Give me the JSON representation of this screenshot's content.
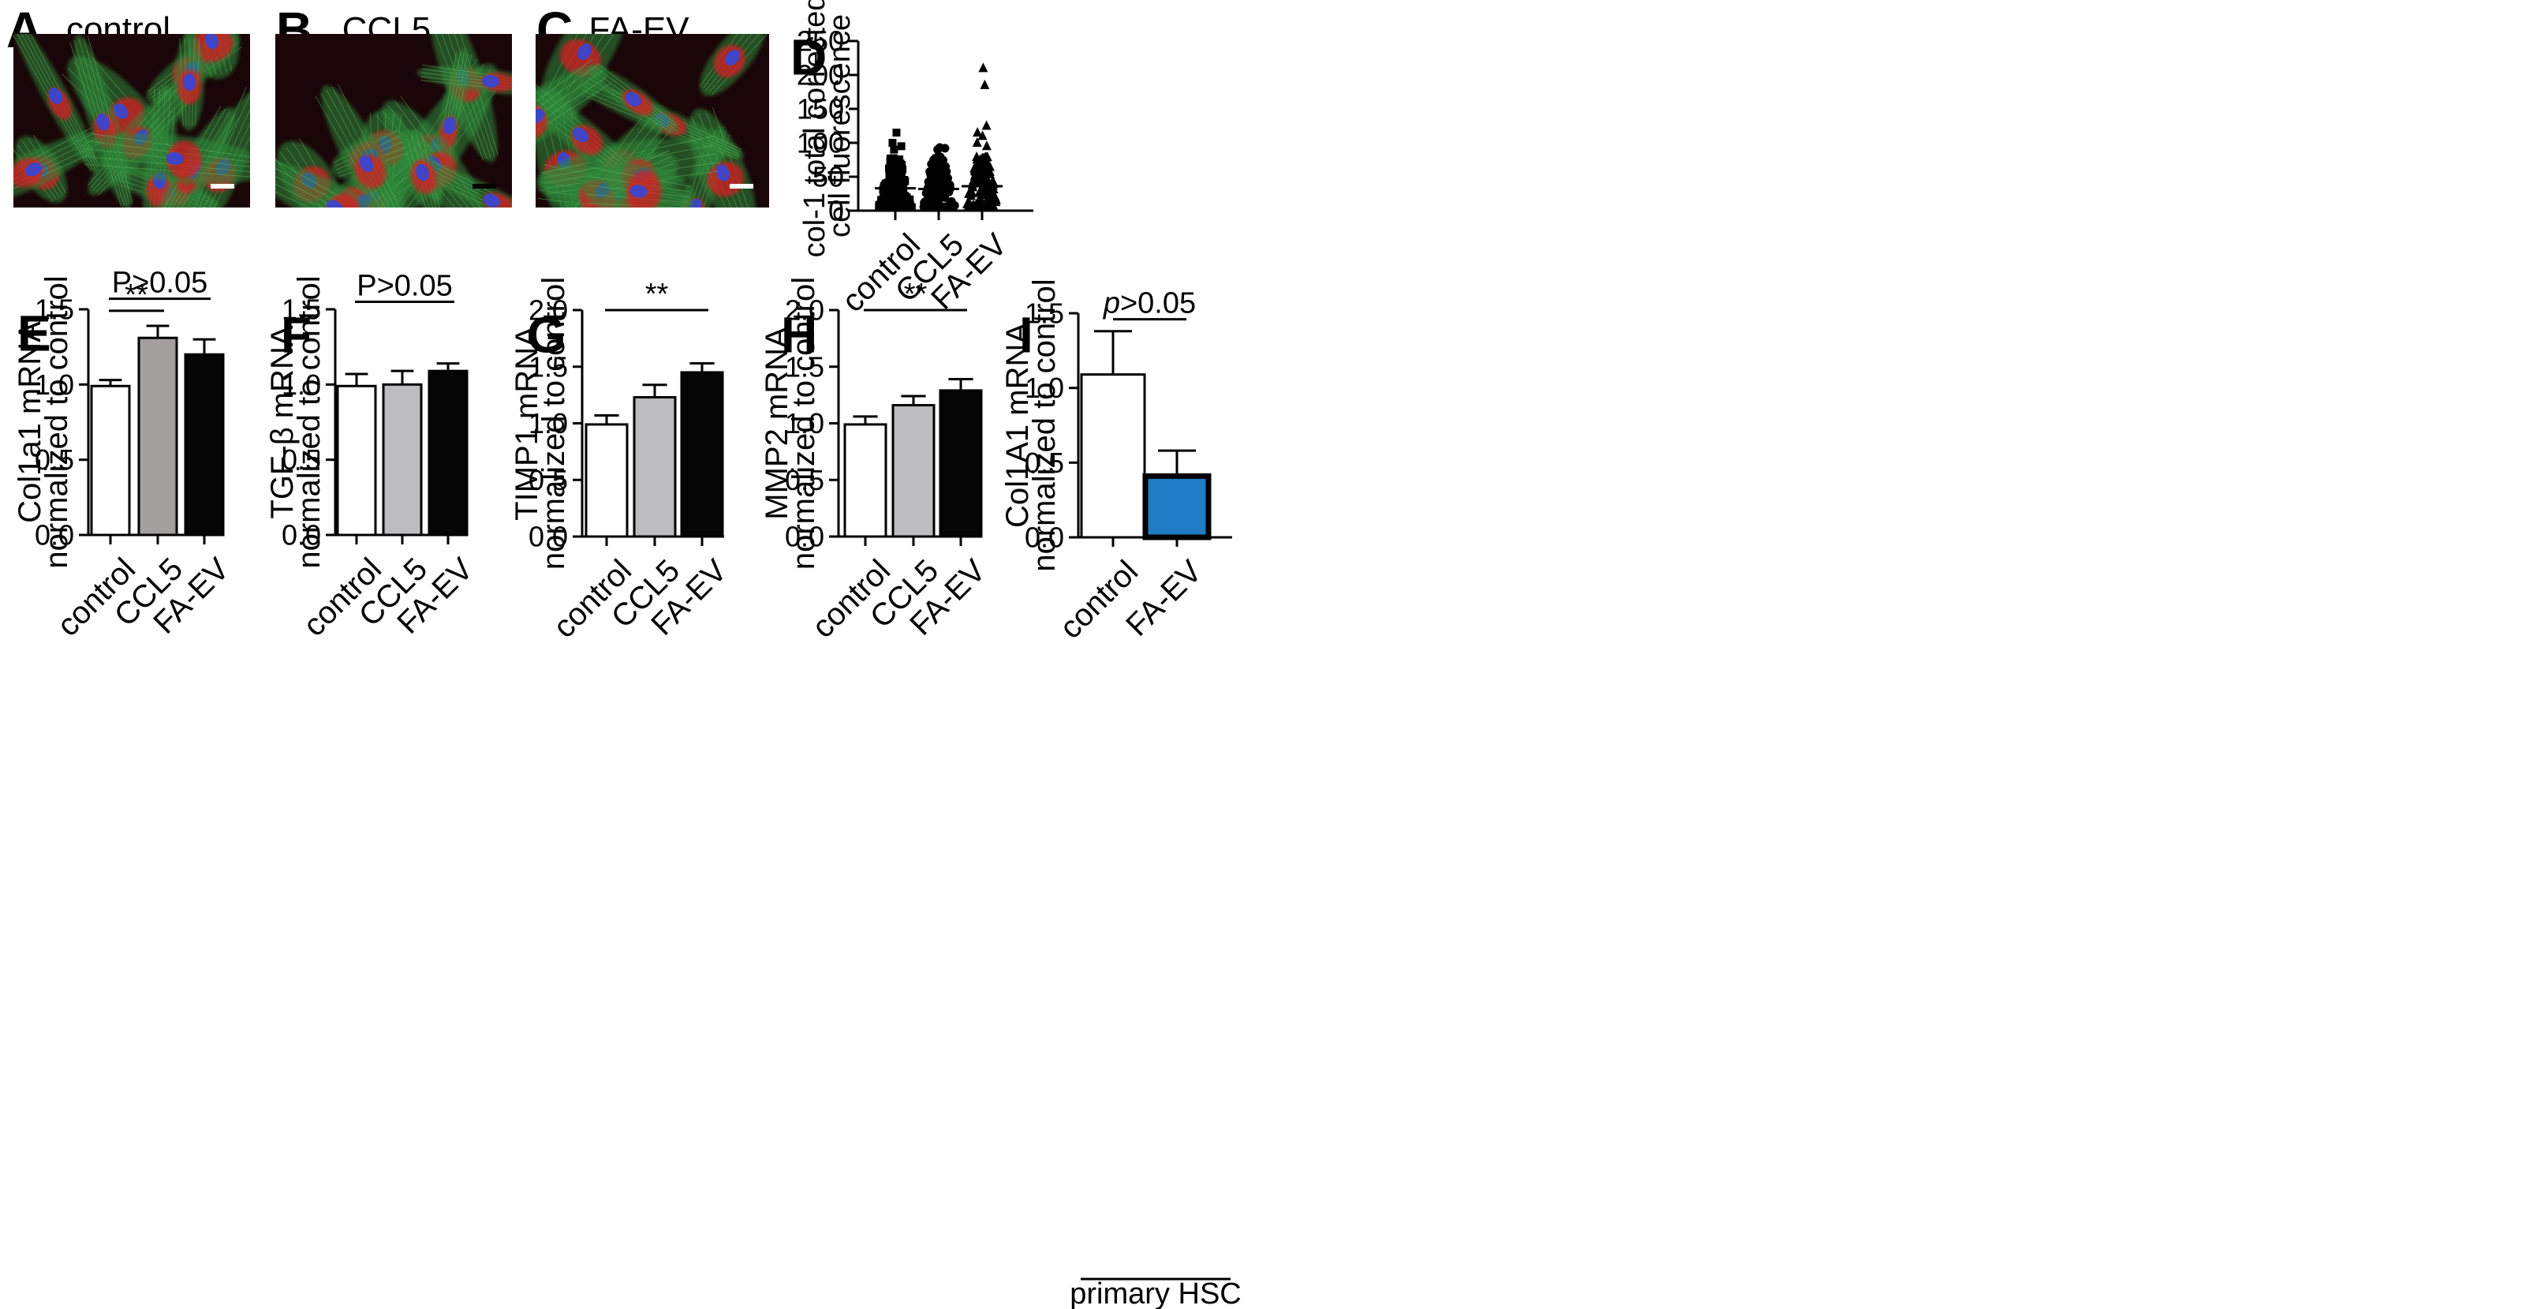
{
  "panels": {
    "A": {
      "letter": "A",
      "title": "control"
    },
    "B": {
      "letter": "B",
      "title": "CCL5"
    },
    "C": {
      "letter": "C",
      "title": "FA-EV"
    }
  },
  "chart_data": [
    {
      "panel": "D",
      "type": "scatter",
      "ylabel": [
        "col-1 total corrected",
        "cell fluorescence"
      ],
      "ylim": [
        0,
        250
      ],
      "yticks": [
        0,
        50,
        100,
        150,
        200,
        250
      ],
      "categories": [
        "control",
        "CCL5",
        "FA-EV"
      ],
      "means": [
        33,
        32,
        36
      ],
      "markers": [
        "square",
        "circle",
        "triangle"
      ],
      "outliers": [
        [
          115,
          100,
          95,
          90
        ],
        [
          93,
          92,
          90
        ],
        [
          210,
          185,
          125,
          115,
          110,
          100,
          95
        ]
      ]
    },
    {
      "panel": "E",
      "type": "bar",
      "ylabel": [
        "Col1a1 mRNA",
        "normalized to control"
      ],
      "ylim": [
        0,
        1.5
      ],
      "yticks": [
        0.0,
        0.5,
        1.0,
        1.5
      ],
      "categories": [
        "control",
        "CCL5",
        "FA-EV"
      ],
      "values": [
        0.99,
        1.31,
        1.2
      ],
      "errors": [
        0.04,
        0.08,
        0.1
      ],
      "colors": [
        "#ffffff",
        "#a29f9f",
        "#050505"
      ],
      "annotations": [
        {
          "text": "P>0.05",
          "from": 0,
          "to": 2,
          "y": 1.57
        },
        {
          "text": "**",
          "from": 0,
          "to": 1,
          "y": 1.49
        }
      ]
    },
    {
      "panel": "F",
      "type": "bar",
      "ylabel": [
        "TGF-β mRNA",
        "normalized to control"
      ],
      "ylim": [
        0,
        1.5
      ],
      "yticks": [
        0.0,
        0.5,
        1.0,
        1.5
      ],
      "categories": [
        "control",
        "CCL5",
        "FA-EV"
      ],
      "values": [
        0.99,
        1.0,
        1.09
      ],
      "errors": [
        0.08,
        0.09,
        0.05
      ],
      "colors": [
        "#ffffff",
        "#bdbdbf",
        "#050505"
      ],
      "annotations": [
        {
          "text": "P>0.05",
          "from": 0,
          "to": 2,
          "y": 1.55
        }
      ]
    },
    {
      "panel": "G",
      "type": "bar",
      "ylabel": [
        "TIMP1 mRNA",
        "normalized to control"
      ],
      "ylim": [
        0,
        2.0
      ],
      "yticks": [
        0.0,
        0.5,
        1.0,
        1.5,
        2.0
      ],
      "categories": [
        "control",
        "CCL5",
        "FA-EV"
      ],
      "values": [
        0.99,
        1.23,
        1.45
      ],
      "errors": [
        0.08,
        0.11,
        0.08
      ],
      "colors": [
        "#ffffff",
        "#bdbdbf",
        "#050505"
      ],
      "annotations": [
        {
          "text": "**",
          "from": 0,
          "to": 2,
          "y": 2.0
        }
      ]
    },
    {
      "panel": "H",
      "type": "bar",
      "ylabel": [
        "MMP2 mRNA",
        "normalized to control"
      ],
      "ylim": [
        0,
        2.0
      ],
      "yticks": [
        0.0,
        0.5,
        1.0,
        1.5,
        2.0
      ],
      "categories": [
        "control",
        "CCL5",
        "FA-EV"
      ],
      "values": [
        0.99,
        1.16,
        1.29
      ],
      "errors": [
        0.07,
        0.08,
        0.1
      ],
      "colors": [
        "#ffffff",
        "#bdbdbf",
        "#050505"
      ],
      "annotations": [
        {
          "text": "**",
          "from": 0,
          "to": 2,
          "y": 2.0
        }
      ]
    },
    {
      "panel": "I",
      "type": "bar",
      "ylabel": [
        "Col1A1 mRNA",
        "normalized to control"
      ],
      "ylim": [
        0,
        1.5
      ],
      "yticks": [
        0.0,
        0.5,
        1.0,
        1.5
      ],
      "categories": [
        "control",
        "FA-EV"
      ],
      "values": [
        1.09,
        0.41
      ],
      "errors": [
        0.29,
        0.17
      ],
      "colors": [
        "#ffffff",
        "#1e7bc4"
      ],
      "annotations": [
        {
          "text": "p>0.05",
          "italic_prefix": "p",
          "from": 0,
          "to": 1,
          "y": 1.46
        }
      ],
      "group_label": "primary HSC"
    }
  ],
  "colors": {
    "micrograph_bg": "#1a0508",
    "actin": "#2f8a3b",
    "collagen": "#d81c24",
    "nucleus": "#3a46d0"
  }
}
